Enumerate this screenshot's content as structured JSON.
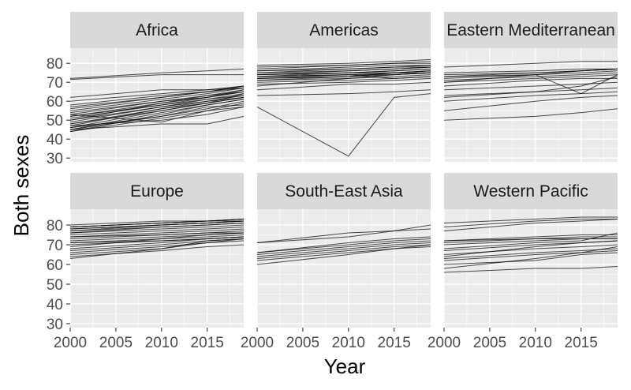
{
  "chart_data": {
    "type": "line",
    "title": "",
    "xlabel": "Year",
    "ylabel": "Both sexes",
    "xlim": [
      2000,
      2019
    ],
    "ylim": [
      28,
      88
    ],
    "x_ticks": [
      2000,
      2005,
      2010,
      2015
    ],
    "x_tick_labels": [
      "2000",
      "2005",
      "2010",
      "2015"
    ],
    "y_ticks": [
      30,
      40,
      50,
      60,
      70,
      80
    ],
    "y_tick_labels": [
      "30",
      "40",
      "50",
      "60",
      "70",
      "80"
    ],
    "years": [
      2000,
      2010,
      2015,
      2019
    ],
    "grid": true,
    "panel_background": "#EBEBEB",
    "strip_background": "#D9D9D9",
    "line_color": "#000000",
    "facets": [
      {
        "name": "Africa",
        "series": [
          {
            "values": [
              71.5,
              74,
              74,
              74
            ]
          },
          {
            "values": [
              72,
              75,
              76,
              77
            ]
          },
          {
            "values": [
              62,
              66,
              66,
              67
            ]
          },
          {
            "values": [
              58,
              63,
              65,
              68
            ]
          },
          {
            "values": [
              55,
              61,
              64,
              67
            ]
          },
          {
            "values": [
              53,
              60,
              62,
              65
            ]
          },
          {
            "values": [
              52,
              59,
              62,
              66
            ]
          },
          {
            "values": [
              51,
              58,
              61,
              64
            ]
          },
          {
            "values": [
              50,
              57,
              61,
              63
            ]
          },
          {
            "values": [
              49,
              57,
              60,
              63
            ]
          },
          {
            "values": [
              48,
              56,
              60,
              62
            ]
          },
          {
            "values": [
              47,
              56,
              59,
              62
            ]
          },
          {
            "values": [
              46,
              55,
              59,
              62
            ]
          },
          {
            "values": [
              45,
              54,
              58,
              61
            ]
          },
          {
            "values": [
              44,
              53,
              58,
              61
            ]
          },
          {
            "values": [
              46,
              52,
              56,
              60
            ]
          },
          {
            "values": [
              44,
              51,
              55,
              59
            ]
          },
          {
            "values": [
              48,
              55,
              59,
              64
            ]
          },
          {
            "values": [
              52,
              58,
              62,
              65
            ]
          },
          {
            "values": [
              54,
              60,
              63,
              66
            ]
          },
          {
            "values": [
              56,
              62,
              65,
              68
            ]
          },
          {
            "values": [
              60,
              64,
              66,
              68
            ]
          },
          {
            "values": [
              45,
              48,
              48,
              52
            ]
          },
          {
            "values": [
              47,
              50,
              53,
              57
            ]
          },
          {
            "values": [
              45,
              52,
              57,
              58
            ]
          },
          {
            "values": [
              50,
              59,
              63,
              65
            ]
          },
          {
            "values": [
              57,
              62,
              65,
              67
            ]
          },
          {
            "values": [
              53,
              49,
              55,
              57
            ]
          }
        ]
      },
      {
        "name": "Americas",
        "series": [
          {
            "values": [
              57,
              31,
              62,
              64
            ]
          },
          {
            "values": [
              63,
              64,
              65,
              66
            ]
          },
          {
            "values": [
              66,
              69,
              69,
              70
            ]
          },
          {
            "values": [
              69,
              70,
              71,
              72
            ]
          },
          {
            "values": [
              70,
              71,
              72,
              73
            ]
          },
          {
            "values": [
              71,
              72,
              73,
              74
            ]
          },
          {
            "values": [
              72,
              73,
              74,
              75
            ]
          },
          {
            "values": [
              72,
              74,
              74,
              75
            ]
          },
          {
            "values": [
              73,
              74,
              75,
              76
            ]
          },
          {
            "values": [
              73,
              75,
              76,
              77
            ]
          },
          {
            "values": [
              74,
              75,
              76,
              77
            ]
          },
          {
            "values": [
              74,
              76,
              77,
              78
            ]
          },
          {
            "values": [
              75,
              76,
              77,
              78
            ]
          },
          {
            "values": [
              75,
              77,
              78,
              78
            ]
          },
          {
            "values": [
              76,
              77,
              78,
              79
            ]
          },
          {
            "values": [
              76,
              78,
              79,
              79
            ]
          },
          {
            "values": [
              77,
              79,
              80,
              80
            ]
          },
          {
            "values": [
              78,
              79,
              80,
              81
            ]
          },
          {
            "values": [
              79,
              80,
              81,
              82
            ]
          },
          {
            "values": [
              73,
              74,
              72,
              73
            ]
          },
          {
            "values": [
              74,
              75,
              75,
              76
            ]
          },
          {
            "values": [
              71,
              73,
              75,
              75
            ]
          },
          {
            "values": [
              68,
              72,
              74,
              75
            ]
          },
          {
            "values": [
              72,
              73,
              75,
              76
            ]
          }
        ]
      },
      {
        "name": "Eastern Mediterranean",
        "series": [
          {
            "values": [
              50,
              52,
              54,
              56
            ]
          },
          {
            "values": [
              55,
              60,
              62,
              63
            ]
          },
          {
            "values": [
              60,
              63,
              64,
              65
            ]
          },
          {
            "values": [
              62,
              65,
              66,
              67
            ]
          },
          {
            "values": [
              66,
              68,
              69,
              70
            ]
          },
          {
            "values": [
              68,
              71,
              72,
              72
            ]
          },
          {
            "values": [
              70,
              72,
              73,
              74
            ]
          },
          {
            "values": [
              71,
              73,
              74,
              75
            ]
          },
          {
            "values": [
              72,
              74,
              75,
              76
            ]
          },
          {
            "values": [
              73,
              75,
              76,
              77
            ]
          },
          {
            "values": [
              74,
              75,
              76,
              77
            ]
          },
          {
            "values": [
              75,
              76,
              77,
              77
            ]
          },
          {
            "values": [
              78,
              80,
              81,
              81
            ]
          },
          {
            "values": [
              73,
              74,
              64,
              74
            ]
          },
          {
            "values": [
              70,
              74,
              76,
              77
            ]
          },
          {
            "values": [
              63,
              65,
              68,
              73
            ]
          }
        ]
      },
      {
        "name": "Europe",
        "series": [
          {
            "values": [
              79,
              81,
              82,
              83
            ]
          },
          {
            "values": [
              79,
              81,
              82,
              83
            ]
          },
          {
            "values": [
              78,
              80,
              81,
              82
            ]
          },
          {
            "values": [
              78,
              80,
              81,
              82
            ]
          },
          {
            "values": [
              77,
              80,
              81,
              82
            ]
          },
          {
            "values": [
              77,
              79,
              80,
              81
            ]
          },
          {
            "values": [
              76,
              79,
              80,
              81
            ]
          },
          {
            "values": [
              75,
              77,
              78,
              79
            ]
          },
          {
            "values": [
              74,
              76,
              77,
              78
            ]
          },
          {
            "values": [
              73,
              75,
              76,
              77
            ]
          },
          {
            "values": [
              72,
              74,
              75,
              76
            ]
          },
          {
            "values": [
              71,
              73,
              74,
              75
            ]
          },
          {
            "values": [
              70,
              72,
              73,
              74
            ]
          },
          {
            "values": [
              68,
              71,
              73,
              74
            ]
          },
          {
            "values": [
              67,
              70,
              72,
              73
            ]
          },
          {
            "values": [
              66,
              69,
              71,
              73
            ]
          },
          {
            "values": [
              65,
              68,
              71,
              72
            ]
          },
          {
            "values": [
              63,
              68,
              72,
              73
            ]
          },
          {
            "values": [
              64,
              67,
              69,
              70
            ]
          },
          {
            "values": [
              71,
              72,
              73,
              74
            ]
          },
          {
            "values": [
              74,
              75,
              76,
              76
            ]
          },
          {
            "values": [
              79,
              81,
              82,
              82
            ]
          },
          {
            "values": [
              80,
              82,
              82,
              83
            ]
          },
          {
            "values": [
              76,
              78,
              79,
              80
            ]
          },
          {
            "values": [
              69,
              73,
              75,
              76
            ]
          }
        ]
      },
      {
        "name": "South-East Asia",
        "series": [
          {
            "values": [
              71,
              76,
              77,
              78
            ]
          },
          {
            "values": [
              71,
              74,
              77,
              80
            ]
          },
          {
            "values": [
              66,
              70,
              72,
              73
            ]
          },
          {
            "values": [
              65,
              69,
              71,
              72
            ]
          },
          {
            "values": [
              64,
              68,
              70,
              71
            ]
          },
          {
            "values": [
              63,
              67,
              69,
              70
            ]
          },
          {
            "values": [
              62,
              66,
              68,
              70
            ]
          },
          {
            "values": [
              60,
              65,
              68,
              69
            ]
          },
          {
            "values": [
              66,
              71,
              73,
              74
            ]
          }
        ]
      },
      {
        "name": "Western Pacific",
        "series": [
          {
            "values": [
              81,
              83,
              84,
              84
            ]
          },
          {
            "values": [
              79,
              82,
              83,
              83
            ]
          },
          {
            "values": [
              77,
              81,
              82,
              83
            ]
          },
          {
            "values": [
              72,
              74,
              75,
              75
            ]
          },
          {
            "values": [
              71,
              73,
              74,
              74
            ]
          },
          {
            "values": [
              70,
              72,
              73,
              73
            ]
          },
          {
            "values": [
              67,
              70,
              71,
              72
            ]
          },
          {
            "values": [
              65,
              68,
              69,
              70
            ]
          },
          {
            "values": [
              63,
              66,
              67,
              68
            ]
          },
          {
            "values": [
              62,
              65,
              66,
              67
            ]
          },
          {
            "values": [
              60,
              62,
              65,
              66
            ]
          },
          {
            "values": [
              58,
              63,
              66,
              69
            ]
          },
          {
            "values": [
              56,
              58,
              58,
              59
            ]
          },
          {
            "values": [
              72,
              73,
              73,
              73
            ]
          },
          {
            "values": [
              68,
              71,
              72,
              76
            ]
          },
          {
            "values": [
              64,
              69,
              71,
              72
            ]
          }
        ]
      }
    ]
  }
}
